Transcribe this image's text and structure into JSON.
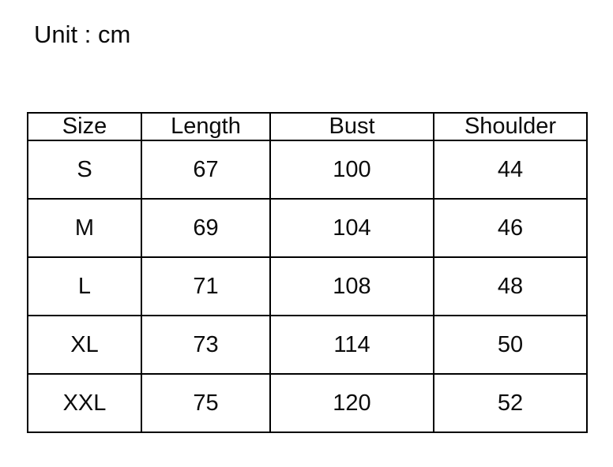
{
  "page": {
    "background": "#ffffff",
    "unit_label": "Unit : cm"
  },
  "size_table": {
    "border_color": "#000000",
    "text_color": "#0b0b0b",
    "columns": [
      "Size",
      "Length",
      "Bust",
      "Shoulder"
    ],
    "rows": [
      {
        "size": "S",
        "length": "67",
        "bust": "100",
        "shoulder": "44"
      },
      {
        "size": "M",
        "length": "69",
        "bust": "104",
        "shoulder": "46"
      },
      {
        "size": "L",
        "length": "71",
        "bust": "108",
        "shoulder": "48"
      },
      {
        "size": "XL",
        "length": "73",
        "bust": "114",
        "shoulder": "50"
      },
      {
        "size": "XXL",
        "length": "75",
        "bust": "120",
        "shoulder": "52"
      }
    ]
  }
}
